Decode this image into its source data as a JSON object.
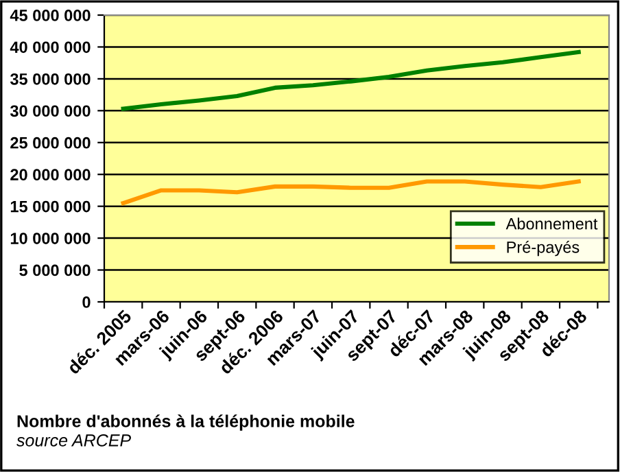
{
  "chart_data": {
    "type": "line",
    "title": "Nombre d'abonnés à la téléphonie mobile",
    "annotations": [
      "source ARCEP"
    ],
    "categories": [
      "déc. 2005",
      "mars-06",
      "juin-06",
      "sept-06",
      "déc. 2006",
      "mars-07",
      "juin-07",
      "sept-07",
      "déc-07",
      "mars-08",
      "juin-08",
      "sept-08",
      "déc-08"
    ],
    "series": [
      {
        "name": "Abonnement",
        "color": "#008000",
        "values": [
          30300000,
          31000000,
          31600000,
          32300000,
          33600000,
          34000000,
          34600000,
          35300000,
          36300000,
          37000000,
          37600000,
          38400000,
          39200000
        ]
      },
      {
        "name": "Pré-payés",
        "color": "#ff9900",
        "values": [
          15500000,
          17500000,
          17500000,
          17200000,
          18100000,
          18100000,
          17900000,
          17900000,
          18900000,
          18900000,
          18400000,
          18000000,
          18900000
        ]
      }
    ],
    "ylim": [
      0,
      45000000
    ],
    "yticks": [
      {
        "value": 0,
        "label": "0"
      },
      {
        "value": 5000000,
        "label": "5 000 000"
      },
      {
        "value": 10000000,
        "label": "10 000 000"
      },
      {
        "value": 15000000,
        "label": "15 000 000"
      },
      {
        "value": 20000000,
        "label": "20 000 000"
      },
      {
        "value": 25000000,
        "label": "25 000 000"
      },
      {
        "value": 30000000,
        "label": "30 000 000"
      },
      {
        "value": 35000000,
        "label": "35 000 000"
      },
      {
        "value": 40000000,
        "label": "40 000 000"
      },
      {
        "value": 45000000,
        "label": "45 000 000"
      }
    ],
    "grid": "y",
    "legend": "bottom right",
    "marker": "none",
    "line_style": "solid"
  }
}
